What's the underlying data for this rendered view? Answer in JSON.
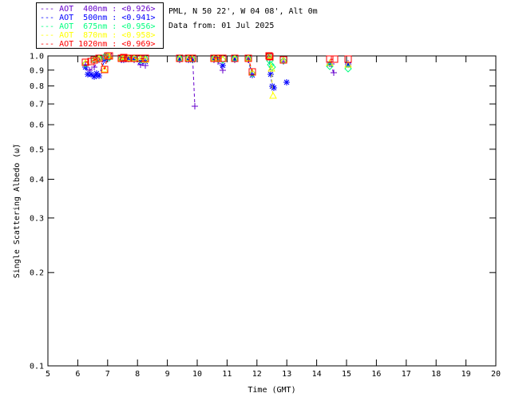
{
  "header": {
    "site_line": "PML, N 50 22', W 04 08', Alt 0m",
    "date_line": "Data from: 01 Jul 2025"
  },
  "legend": {
    "dash": "---",
    "entries": [
      {
        "id": "400nm",
        "label": " AOT  400nm : <0.926>",
        "color": "#6600cc"
      },
      {
        "id": "500nm",
        "label": " AOT  500nm : <0.941>",
        "color": "#0000ff"
      },
      {
        "id": "675nm",
        "label": " AOT  675nm : <0.956>",
        "color": "#00ff7f"
      },
      {
        "id": "870nm",
        "label": " AOT  870nm : <0.958>",
        "color": "#ffff00"
      },
      {
        "id": "1020nm",
        "label": " AOT 1020nm : <0.969>",
        "color": "#ff0000"
      }
    ]
  },
  "chart_data": {
    "type": "scatter",
    "title": "PML, N 50 22', W 04 08', Alt 0m",
    "subtitle": "Data from: 01 Jul 2025",
    "xlabel": "Time (GMT)",
    "ylabel": "Single Scattering Albedo (ω̃)",
    "xlim": [
      5,
      20
    ],
    "ylim": [
      0.1,
      1.0
    ],
    "yscale": "log",
    "grid": false,
    "legend_position": "top-left",
    "xticks": [
      5,
      6,
      7,
      8,
      9,
      10,
      11,
      12,
      13,
      14,
      15,
      16,
      17,
      18,
      19,
      20
    ],
    "yticks": [
      0.1,
      0.2,
      0.3,
      0.4,
      0.5,
      0.6,
      0.7,
      0.8,
      0.9,
      1.0
    ],
    "ytick_labels": [
      "0.1",
      "0.2",
      "0.3",
      "0.4",
      "0.5",
      "0.6",
      "0.7",
      "0.8",
      "0.9",
      "1.0"
    ],
    "line_style": "dashed",
    "gap_threshold_hours": 0.25,
    "series": [
      {
        "name": "AOT 400nm",
        "mean_label": "<0.926>",
        "color": "#6600cc",
        "marker": "plus",
        "points": [
          [
            6.25,
            0.935
          ],
          [
            6.4,
            0.9
          ],
          [
            6.55,
            0.92
          ],
          [
            6.7,
            0.97
          ],
          [
            6.9,
            0.99
          ],
          [
            7.0,
            1.0
          ],
          [
            7.05,
            0.98
          ],
          [
            7.45,
            0.97
          ],
          [
            7.55,
            0.98
          ],
          [
            7.7,
            0.975
          ],
          [
            7.9,
            0.97
          ],
          [
            8.1,
            0.935
          ],
          [
            8.25,
            0.93
          ],
          [
            9.4,
            0.97
          ],
          [
            9.7,
            0.975
          ],
          [
            9.85,
            0.97
          ],
          [
            9.92,
            0.69
          ],
          [
            10.55,
            0.97
          ],
          [
            10.7,
            0.96
          ],
          [
            10.85,
            0.9
          ],
          [
            11.25,
            0.97
          ],
          [
            11.7,
            0.97
          ],
          [
            11.85,
            0.875
          ],
          [
            12.4,
            0.995
          ],
          [
            12.44,
            0.99
          ],
          [
            12.9,
            0.96
          ],
          [
            14.48,
            0.94
          ],
          [
            14.56,
            0.885
          ],
          [
            15.05,
            0.95
          ]
        ]
      },
      {
        "name": "AOT 500nm",
        "mean_label": "<0.941>",
        "color": "#0000ff",
        "marker": "asterisk",
        "points": [
          [
            6.25,
            0.92
          ],
          [
            6.35,
            0.875
          ],
          [
            6.45,
            0.87
          ],
          [
            6.55,
            0.855
          ],
          [
            6.62,
            0.88
          ],
          [
            6.7,
            0.86
          ],
          [
            6.9,
            0.97
          ],
          [
            7.0,
            0.995
          ],
          [
            7.05,
            1.0
          ],
          [
            7.45,
            0.975
          ],
          [
            7.55,
            0.97
          ],
          [
            7.7,
            0.98
          ],
          [
            7.9,
            0.975
          ],
          [
            8.1,
            0.96
          ],
          [
            8.25,
            0.96
          ],
          [
            9.4,
            0.975
          ],
          [
            9.7,
            0.97
          ],
          [
            9.85,
            0.97
          ],
          [
            10.55,
            0.975
          ],
          [
            10.7,
            0.975
          ],
          [
            10.85,
            0.93
          ],
          [
            11.25,
            0.975
          ],
          [
            11.7,
            0.975
          ],
          [
            11.85,
            0.865
          ],
          [
            12.4,
            1.0
          ],
          [
            12.45,
            0.875
          ],
          [
            12.52,
            0.8
          ],
          [
            12.56,
            0.79
          ],
          [
            13.0,
            0.82
          ],
          [
            14.45,
            0.945
          ],
          [
            15.05,
            0.935
          ]
        ]
      },
      {
        "name": "AOT 675nm",
        "mean_label": "<0.956>",
        "color": "#00ff7f",
        "marker": "diamond",
        "points": [
          [
            6.25,
            0.945
          ],
          [
            6.55,
            0.97
          ],
          [
            6.7,
            0.98
          ],
          [
            6.9,
            0.995
          ],
          [
            7.0,
            1.0
          ],
          [
            7.05,
            0.99
          ],
          [
            7.45,
            0.98
          ],
          [
            7.55,
            0.985
          ],
          [
            7.7,
            0.98
          ],
          [
            7.9,
            0.98
          ],
          [
            8.1,
            0.97
          ],
          [
            8.25,
            0.975
          ],
          [
            9.4,
            0.98
          ],
          [
            9.7,
            0.98
          ],
          [
            9.85,
            0.975
          ],
          [
            10.55,
            0.98
          ],
          [
            10.7,
            0.975
          ],
          [
            10.85,
            0.97
          ],
          [
            11.25,
            0.98
          ],
          [
            11.7,
            0.98
          ],
          [
            11.85,
            0.88
          ],
          [
            12.4,
            0.995
          ],
          [
            12.42,
            0.965
          ],
          [
            12.46,
            0.935
          ],
          [
            12.5,
            0.92
          ],
          [
            12.9,
            0.965
          ],
          [
            14.45,
            0.925
          ],
          [
            15.05,
            0.91
          ]
        ]
      },
      {
        "name": "AOT 870nm",
        "mean_label": "<0.958>",
        "color": "#ffff00",
        "marker": "triangle",
        "points": [
          [
            6.25,
            0.95
          ],
          [
            6.55,
            0.965
          ],
          [
            6.7,
            0.975
          ],
          [
            6.9,
            0.905
          ],
          [
            7.0,
            1.0
          ],
          [
            7.05,
            0.995
          ],
          [
            7.45,
            0.98
          ],
          [
            7.55,
            0.975
          ],
          [
            7.7,
            0.985
          ],
          [
            7.9,
            0.98
          ],
          [
            8.1,
            0.975
          ],
          [
            8.25,
            0.97
          ],
          [
            9.4,
            0.975
          ],
          [
            9.7,
            0.98
          ],
          [
            9.85,
            0.975
          ],
          [
            10.55,
            0.98
          ],
          [
            10.7,
            0.98
          ],
          [
            10.85,
            0.975
          ],
          [
            11.25,
            0.975
          ],
          [
            11.7,
            0.98
          ],
          [
            11.85,
            0.885
          ],
          [
            12.4,
            1.0
          ],
          [
            12.44,
            0.99
          ],
          [
            12.48,
            0.91
          ],
          [
            12.53,
            0.745
          ],
          [
            12.9,
            0.965
          ],
          [
            14.45,
            0.95
          ],
          [
            15.05,
            0.935
          ]
        ]
      },
      {
        "name": "AOT 1020nm",
        "mean_label": "<0.969>",
        "color": "#ff0000",
        "marker": "square",
        "points": [
          [
            6.25,
            0.955
          ],
          [
            6.45,
            0.96
          ],
          [
            6.55,
            0.97
          ],
          [
            6.7,
            0.985
          ],
          [
            6.9,
            0.905
          ],
          [
            7.0,
            1.0
          ],
          [
            7.05,
            1.0
          ],
          [
            7.45,
            0.985
          ],
          [
            7.55,
            0.99
          ],
          [
            7.7,
            0.985
          ],
          [
            7.9,
            0.985
          ],
          [
            8.1,
            0.98
          ],
          [
            8.25,
            0.98
          ],
          [
            9.4,
            0.98
          ],
          [
            9.7,
            0.985
          ],
          [
            9.85,
            0.98
          ],
          [
            10.55,
            0.985
          ],
          [
            10.7,
            0.985
          ],
          [
            10.85,
            0.98
          ],
          [
            11.25,
            0.98
          ],
          [
            11.7,
            0.985
          ],
          [
            11.85,
            0.89
          ],
          [
            12.4,
            1.0
          ],
          [
            12.44,
            0.995
          ],
          [
            12.9,
            0.97
          ],
          [
            14.45,
            0.975
          ],
          [
            14.6,
            0.975
          ],
          [
            15.05,
            0.975
          ]
        ]
      }
    ]
  }
}
